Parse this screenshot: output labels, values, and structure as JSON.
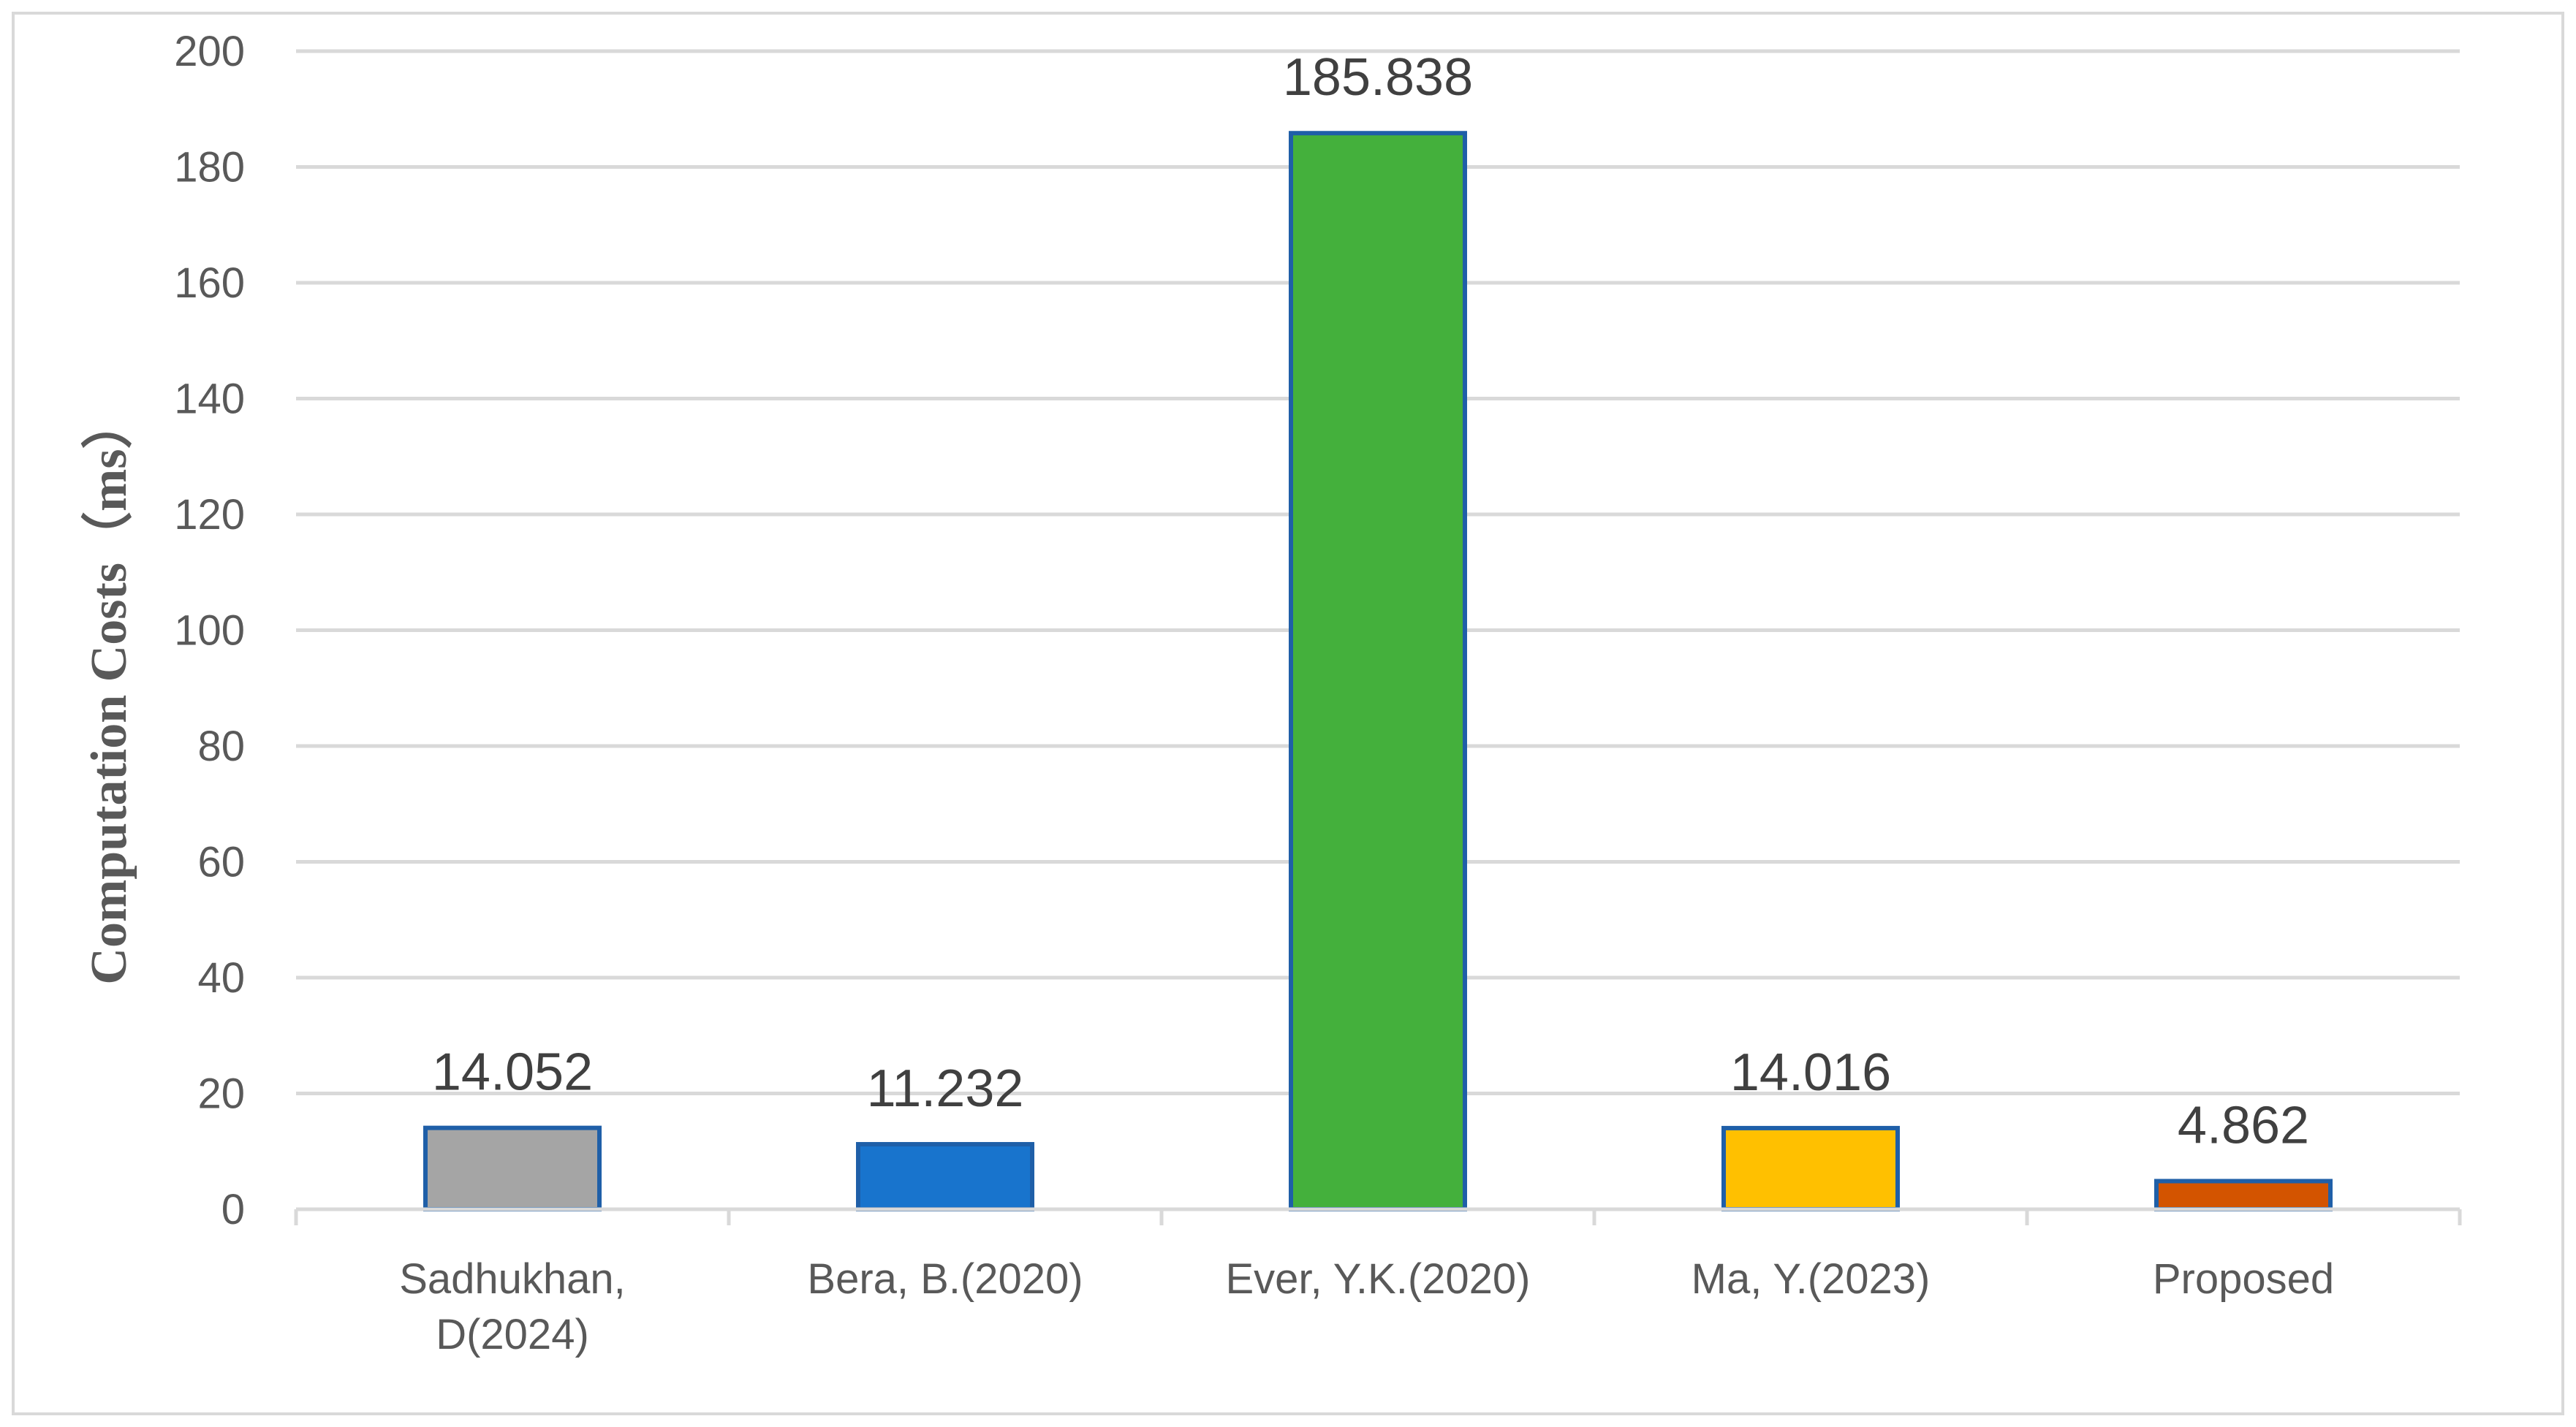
{
  "chart_data": {
    "type": "bar",
    "categories": [
      "Sadhukhan, D(2024)",
      "Bera, B.(2020)",
      "Ever, Y.K.(2020)",
      "Ma, Y.(2023)",
      "Proposed"
    ],
    "category_lines": [
      [
        "Sadhukhan,",
        "D(2024)"
      ],
      [
        "Bera, B.(2020)"
      ],
      [
        "Ever, Y.K.(2020)"
      ],
      [
        "Ma, Y.(2023)"
      ],
      [
        "Proposed"
      ]
    ],
    "values": [
      14.052,
      11.232,
      185.838,
      14.016,
      4.862
    ],
    "data_labels": [
      "14.052",
      "11.232",
      "185.838",
      "14.016",
      "4.862"
    ],
    "colors": [
      "#a5a5a5",
      "#1874cd",
      "#44b03c",
      "#ffc000",
      "#d35400"
    ],
    "border_color": "#1f5fa8",
    "ylabel": "Computation Costs（ms）",
    "xlabel": "",
    "title": "",
    "ylim": [
      0,
      200
    ],
    "yticks": [
      0,
      20,
      40,
      60,
      80,
      100,
      120,
      140,
      160,
      180,
      200
    ],
    "grid": true,
    "legend": "none"
  }
}
